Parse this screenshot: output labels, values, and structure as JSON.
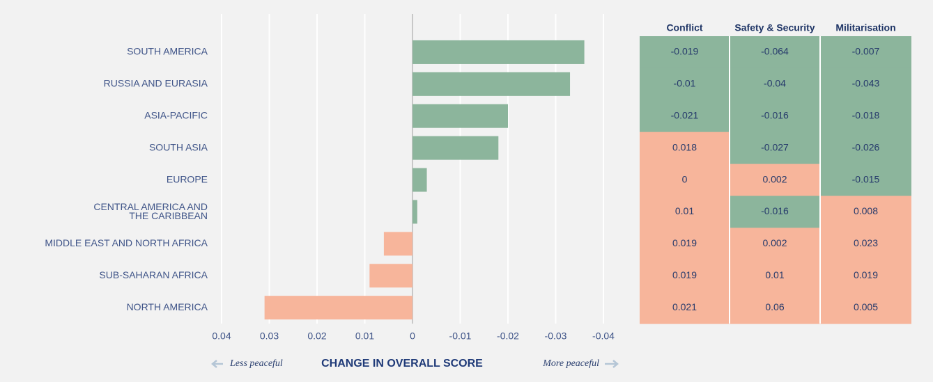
{
  "chart_data": {
    "type": "barh",
    "categories": [
      "SOUTH AMERICA",
      "RUSSIA AND EURASIA",
      "ASIA-PACIFIC",
      "SOUTH ASIA",
      "EUROPE",
      "CENTRAL AMERICA AND\nTHE CARIBBEAN",
      "MIDDLE EAST AND NORTH AFRICA",
      "SUB-SAHARAN AFRICA",
      "NORTH AMERICA"
    ],
    "values": [
      -0.036,
      -0.033,
      -0.02,
      -0.018,
      -0.003,
      -0.001,
      0.006,
      0.009,
      0.031
    ],
    "colors": [
      "#8cb59c",
      "#8cb59c",
      "#8cb59c",
      "#8cb59c",
      "#8cb59c",
      "#8cb59c",
      "#f7b59b",
      "#f7b59b",
      "#f7b59b"
    ],
    "xlim": [
      0.04,
      -0.04
    ],
    "xticks": [
      0.04,
      0.03,
      0.02,
      0.01,
      0,
      -0.01,
      -0.02,
      -0.03,
      -0.04
    ],
    "grid": true,
    "xlabel": "CHANGE IN OVERALL SCORE",
    "annotations": [
      "Less peaceful",
      "More peaceful"
    ]
  },
  "table": {
    "columns": [
      "Conflict",
      "Safety & Security",
      "Militarisation"
    ],
    "rows": [
      [
        -0.019,
        -0.064,
        -0.007
      ],
      [
        -0.01,
        -0.04,
        -0.043
      ],
      [
        -0.021,
        -0.016,
        -0.018
      ],
      [
        0.018,
        -0.027,
        -0.026
      ],
      [
        0,
        0.002,
        -0.015
      ],
      [
        0.01,
        -0.016,
        0.008
      ],
      [
        0.019,
        0.002,
        0.023
      ],
      [
        0.019,
        0.01,
        0.019
      ],
      [
        0.021,
        0.06,
        0.005
      ]
    ],
    "negative_color": "#8cb59c",
    "positive_color": "#f7b59b"
  }
}
